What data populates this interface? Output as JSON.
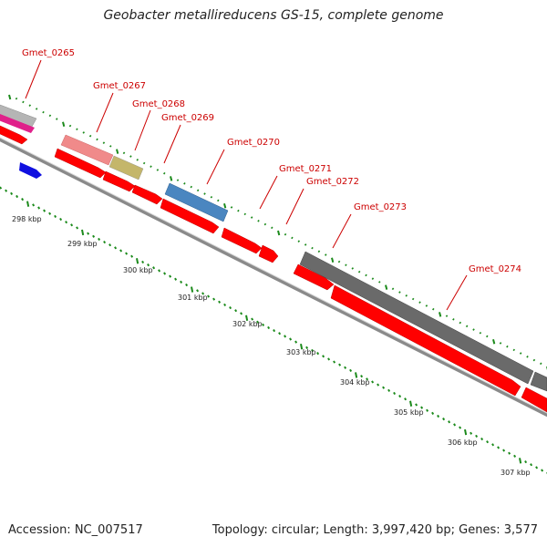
{
  "title": "Geobacter metallireducens GS-15, complete genome",
  "footer": {
    "accession": "Accession: NC_007517",
    "summary": "Topology: circular; Length: 3,997,420 bp; Genes: 3,577"
  },
  "gene_labels": [
    "Gmet_0265",
    "Gmet_0267",
    "Gmet_0268",
    "Gmet_0269",
    "Gmet_0270",
    "Gmet_0271",
    "Gmet_0272",
    "Gmet_0273",
    "Gmet_0274"
  ],
  "kbp_labels": [
    "298 kbp",
    "299 kbp",
    "300 kbp",
    "301 kbp",
    "302 kbp",
    "303 kbp",
    "304 kbp",
    "305 kbp",
    "306 kbp",
    "307 kbp"
  ],
  "colors": {
    "gene_label": "#cc0000",
    "cds": "#ff0000",
    "ruler": "#1b8a1b",
    "backbone": "#8a8a8a",
    "dark_feature": "#666666"
  }
}
